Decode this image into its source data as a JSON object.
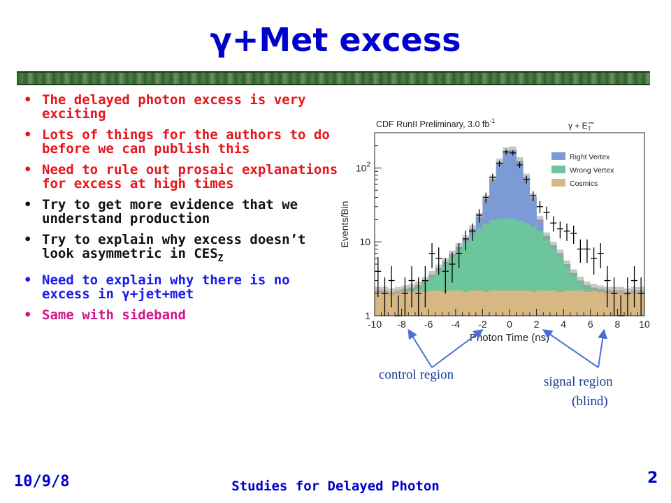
{
  "slide": {
    "title": "γ+Met excess",
    "bullets": [
      {
        "text": "The delayed photon excess is very exciting",
        "color": "#e8141a"
      },
      {
        "text": "Lots of things for the authors to do before we can publish this",
        "color": "#e8141a"
      },
      {
        "text": "Need to rule out prosaic explanations for excess at high times",
        "color": "#e8141a"
      },
      {
        "text": "Try to get more evidence that we understand production",
        "color": "#111111"
      },
      {
        "text": "Try to explain why excess doesn’t look asymmetric in CES",
        "sub": "Z",
        "color": "#111111"
      },
      {
        "text": "Need to explain why there is no excess in γ+jet+met",
        "color": "#1a1aee"
      },
      {
        "text": "Same with sideband",
        "color": "#d4148e"
      }
    ],
    "bullet_char": "•",
    "footer": {
      "date": "10/9/8",
      "title": "Studies for Delayed Photon",
      "page": "2"
    }
  },
  "chart_data": {
    "type": "bar",
    "title": "CDF RunII Preliminary, 3.0 fb",
    "title_sup": "-1",
    "top_right_label": "γ + E",
    "top_right_sub": "T",
    "xlabel": "Photon Time (ns)",
    "ylabel": "Events/Bin",
    "xlim": [
      -10,
      10
    ],
    "ylim": [
      1,
      300
    ],
    "yscale": "log",
    "xticks": [
      "-10",
      "-8",
      "-6",
      "-4",
      "-2",
      "0",
      "2",
      "4",
      "6",
      "8",
      "10"
    ],
    "yticks": [
      {
        "v": 1,
        "label": "1"
      },
      {
        "v": 10,
        "label": "10"
      },
      {
        "v": 100,
        "label": "10",
        "sup": "2"
      }
    ],
    "bin_edges": [
      -10,
      -9.5,
      -9,
      -8.5,
      -8,
      -7.5,
      -7,
      -6.5,
      -6,
      -5.5,
      -5,
      -4.5,
      -4,
      -3.5,
      -3,
      -2.5,
      -2,
      -1.5,
      -1,
      -0.5,
      0,
      0.5,
      1,
      1.5,
      2,
      2.5,
      3,
      3.5,
      4,
      4.5,
      5,
      5.5,
      6,
      6.5,
      7,
      7.5,
      8,
      8.5,
      9,
      9.5,
      10
    ],
    "series": [
      {
        "name": "Cosmics",
        "color": "#d7b784",
        "values": [
          2.2,
          2.2,
          2.1,
          2.2,
          2.2,
          2.1,
          2.2,
          2.1,
          2.2,
          2.2,
          2.1,
          2.2,
          2.2,
          2.1,
          2.2,
          2.2,
          2.1,
          2.2,
          2.2,
          2.2,
          2.2,
          2.2,
          2.2,
          2.1,
          2.2,
          2.2,
          2.2,
          2.1,
          2.2,
          2.2,
          2.2,
          2.1,
          2.2,
          2.2,
          2.1,
          2.2,
          2.2,
          2.1,
          2.2,
          2.2
        ]
      },
      {
        "name": "Wrong Vertex",
        "color": "#6dc59b",
        "values": [
          2.2,
          2.2,
          2.1,
          2.2,
          2.3,
          2.4,
          2.6,
          3,
          3.6,
          4.3,
          5.2,
          6.5,
          8,
          10,
          12.5,
          15,
          17.5,
          19.5,
          20.5,
          21,
          20.5,
          19.5,
          18,
          16,
          14,
          11.5,
          9,
          7,
          5,
          3.8,
          3,
          2.6,
          2.4,
          2.3,
          2.2,
          2.2,
          2.2,
          2.1,
          2.2,
          2.2
        ]
      },
      {
        "name": "Right Vertex",
        "color": "#7c9ad6",
        "values": [
          2.2,
          2.2,
          2.1,
          2.2,
          2.3,
          2.4,
          2.6,
          3,
          3.6,
          4.4,
          5.4,
          6.8,
          8.6,
          11,
          15,
          22,
          38,
          70,
          120,
          170,
          175,
          125,
          75,
          40,
          20,
          12,
          9,
          7,
          5,
          3.8,
          3,
          2.6,
          2.4,
          2.3,
          2.2,
          2.2,
          2.2,
          2.1,
          2.2,
          2.2
        ]
      }
    ],
    "data_points": [
      {
        "x": -9.75,
        "y": 4,
        "err": 2.2
      },
      {
        "x": -9.25,
        "y": 2,
        "err": 1.3
      },
      {
        "x": -8.75,
        "y": 3,
        "err": 1.7
      },
      {
        "x": -8.25,
        "y": 1,
        "err": 0.9
      },
      {
        "x": -7.75,
        "y": 2,
        "err": 1.3
      },
      {
        "x": -7.25,
        "y": 3,
        "err": 1.7
      },
      {
        "x": -6.75,
        "y": 2,
        "err": 1.3
      },
      {
        "x": -6.25,
        "y": 3,
        "err": 1.7
      },
      {
        "x": -5.75,
        "y": 7,
        "err": 2.6
      },
      {
        "x": -5.25,
        "y": 6,
        "err": 2.4
      },
      {
        "x": -4.75,
        "y": 4,
        "err": 2
      },
      {
        "x": -4.25,
        "y": 5,
        "err": 2.2
      },
      {
        "x": -3.75,
        "y": 7,
        "err": 2.6
      },
      {
        "x": -3.25,
        "y": 11,
        "err": 3.3
      },
      {
        "x": -2.75,
        "y": 14,
        "err": 3.7
      },
      {
        "x": -2.25,
        "y": 23,
        "err": 4.8
      },
      {
        "x": -1.75,
        "y": 40,
        "err": 6.3
      },
      {
        "x": -1.25,
        "y": 75,
        "err": 8.7
      },
      {
        "x": -0.75,
        "y": 115,
        "err": 10.7
      },
      {
        "x": -0.25,
        "y": 165,
        "err": 12.8
      },
      {
        "x": 0.25,
        "y": 160,
        "err": 12.6
      },
      {
        "x": 0.75,
        "y": 110,
        "err": 10.5
      },
      {
        "x": 1.25,
        "y": 70,
        "err": 8.4
      },
      {
        "x": 1.75,
        "y": 42,
        "err": 6.5
      },
      {
        "x": 2.25,
        "y": 30,
        "err": 5.5
      },
      {
        "x": 2.75,
        "y": 25,
        "err": 5
      },
      {
        "x": 3.25,
        "y": 18,
        "err": 4.2
      },
      {
        "x": 3.75,
        "y": 15,
        "err": 3.9
      },
      {
        "x": 4.25,
        "y": 14,
        "err": 3.7
      },
      {
        "x": 4.75,
        "y": 13,
        "err": 3.6
      },
      {
        "x": 5.25,
        "y": 8,
        "err": 2.8
      },
      {
        "x": 5.75,
        "y": 8,
        "err": 2.8
      },
      {
        "x": 6.25,
        "y": 6,
        "err": 2.4
      },
      {
        "x": 6.75,
        "y": 7,
        "err": 2.6
      },
      {
        "x": 7.25,
        "y": 3,
        "err": 1.7
      },
      {
        "x": 7.75,
        "y": 2,
        "err": 1.3
      },
      {
        "x": 8.25,
        "y": 1,
        "err": 0.9
      },
      {
        "x": 8.75,
        "y": 2,
        "err": 1.3
      },
      {
        "x": 9.25,
        "y": 3,
        "err": 1.7
      },
      {
        "x": 9.75,
        "y": 2,
        "err": 1.3
      }
    ],
    "legend_order": [
      "Right Vertex",
      "Wrong Vertex",
      "Cosmics"
    ],
    "legend_position": "top-right",
    "annotations": [
      {
        "label": "control region",
        "targets_x": [
          -7.5,
          -2
        ]
      },
      {
        "label": "signal region\n(blind)",
        "targets_x": [
          2.5,
          7
        ]
      }
    ],
    "annotation_color": "#4a6fd6"
  }
}
